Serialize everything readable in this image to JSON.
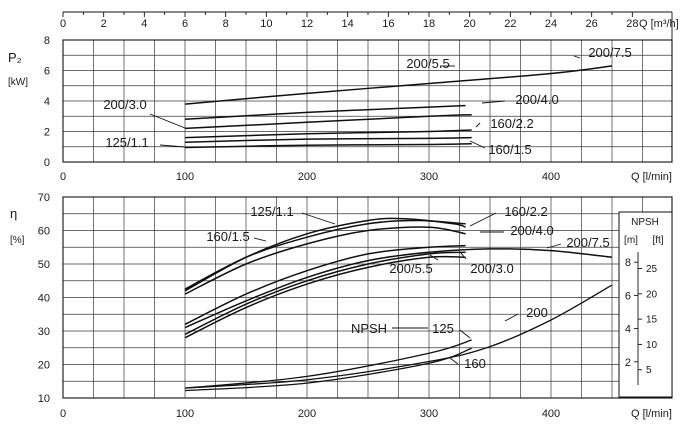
{
  "chart_data": [
    {
      "type": "line",
      "title": "",
      "y_symbol": "P₂",
      "y_unit": "[kW]",
      "ylim": [
        0,
        8
      ],
      "y_ticks": [
        "0",
        "2",
        "4",
        "6",
        "8"
      ],
      "x_top_label": "Q [m³/h]",
      "x_top_ticks": [
        "0",
        "2",
        "4",
        "6",
        "8",
        "10",
        "12",
        "14",
        "16",
        "18",
        "20",
        "22",
        "24",
        "26",
        "28"
      ],
      "x_bottom_label": "Q [l/min]",
      "x_bottom_ticks": [
        "0",
        "100",
        "200",
        "300",
        "400"
      ],
      "xlim": [
        0,
        475
      ],
      "grid": true,
      "series": [
        {
          "name": "200/5.5",
          "x": [
            100,
            200,
            300,
            400,
            450
          ],
          "y": [
            3.8,
            4.5,
            5.15,
            5.8,
            6.3
          ]
        },
        {
          "name": "200/4.0",
          "x": [
            100,
            200,
            300,
            330
          ],
          "y": [
            2.8,
            3.25,
            3.6,
            3.7
          ]
        },
        {
          "name": "200/3.0",
          "x": [
            100,
            200,
            300,
            335
          ],
          "y": [
            2.2,
            2.6,
            3.0,
            3.1
          ]
        },
        {
          "name": "160/2.2",
          "x": [
            100,
            200,
            300,
            335
          ],
          "y": [
            1.6,
            1.85,
            2.0,
            2.1
          ]
        },
        {
          "name": "160/1.5",
          "x": [
            100,
            200,
            300,
            335
          ],
          "y": [
            1.3,
            1.5,
            1.55,
            1.6
          ]
        },
        {
          "name": "125/1.1",
          "x": [
            100,
            200,
            300,
            335
          ],
          "y": [
            0.95,
            1.1,
            1.15,
            1.2
          ]
        }
      ],
      "labels": [
        "200/5.5",
        "200/7.5",
        "200/3.0",
        "200/4.0",
        "160/2.2",
        "125/1.1",
        "160/1.5"
      ]
    },
    {
      "type": "line",
      "title": "",
      "y_symbol": "η",
      "y_unit": "[%]",
      "ylim": [
        10,
        70
      ],
      "y_ticks": [
        "10",
        "20",
        "30",
        "40",
        "50",
        "60",
        "70"
      ],
      "x_bottom_label": "Q [l/min]",
      "x_bottom_ticks": [
        "0",
        "100",
        "200",
        "300",
        "400"
      ],
      "xlim": [
        0,
        475
      ],
      "grid": true,
      "series": [
        {
          "name": "125/1.1",
          "x": [
            100,
            150,
            200,
            250,
            280,
            320,
            330
          ],
          "y": [
            42,
            52,
            59,
            63,
            63.5,
            62,
            61
          ]
        },
        {
          "name": "160/2.2",
          "x": [
            100,
            150,
            200,
            250,
            290,
            330
          ],
          "y": [
            42.5,
            52,
            58,
            62,
            63,
            62
          ]
        },
        {
          "name": "160/1.5",
          "x": [
            100,
            150,
            200,
            250,
            300,
            330
          ],
          "y": [
            41,
            50,
            56,
            60,
            61,
            59
          ]
        },
        {
          "name": "200/4.0",
          "x": [
            100,
            150,
            200,
            250,
            300,
            330
          ],
          "y": [
            32,
            41,
            48,
            53,
            55,
            55.5
          ]
        },
        {
          "name": "200/7.5",
          "x": [
            100,
            150,
            200,
            250,
            300,
            350,
            400,
            450
          ],
          "y": [
            31,
            39,
            46,
            51,
            53.5,
            54.5,
            54,
            52
          ]
        },
        {
          "name": "200/5.5",
          "x": [
            100,
            150,
            200,
            250,
            300,
            330
          ],
          "y": [
            29,
            38,
            45,
            50,
            53,
            53.5
          ]
        },
        {
          "name": "200/3.0",
          "x": [
            100,
            150,
            200,
            250,
            300,
            330
          ],
          "y": [
            28,
            37,
            44,
            49,
            52,
            52
          ]
        }
      ],
      "labels": [
        "125/1.1",
        "160/2.2",
        "160/1.5",
        "200/4.0",
        "200/7.5",
        "200/5.5",
        "200/3.0"
      ]
    },
    {
      "type": "line",
      "title": "",
      "ylabel": "NPSH",
      "y_unit_m": "[m]",
      "y_unit_ft": "[ft]",
      "ylim_m": [
        0,
        10
      ],
      "m_ticks": [
        "2",
        "4",
        "6",
        "8"
      ],
      "ft_ticks": [
        "5",
        "10",
        "15",
        "20",
        "25"
      ],
      "x_bottom_label": "Q [l/min]",
      "series": [
        {
          "name": "200",
          "x": [
            100,
            200,
            300,
            350,
            400,
            450
          ],
          "y": [
            0.9,
            1.4,
            2.5,
            3.4,
            5.0,
            7.1
          ]
        },
        {
          "name": "125",
          "x": [
            100,
            200,
            300,
            335
          ],
          "y": [
            0.9,
            1.6,
            3.0,
            3.8
          ]
        },
        {
          "name": "160",
          "x": [
            100,
            200,
            300,
            335
          ],
          "y": [
            0.75,
            1.2,
            2.4,
            3.3
          ]
        }
      ],
      "labels": [
        "NPSH",
        "125",
        "200",
        "160"
      ]
    }
  ]
}
